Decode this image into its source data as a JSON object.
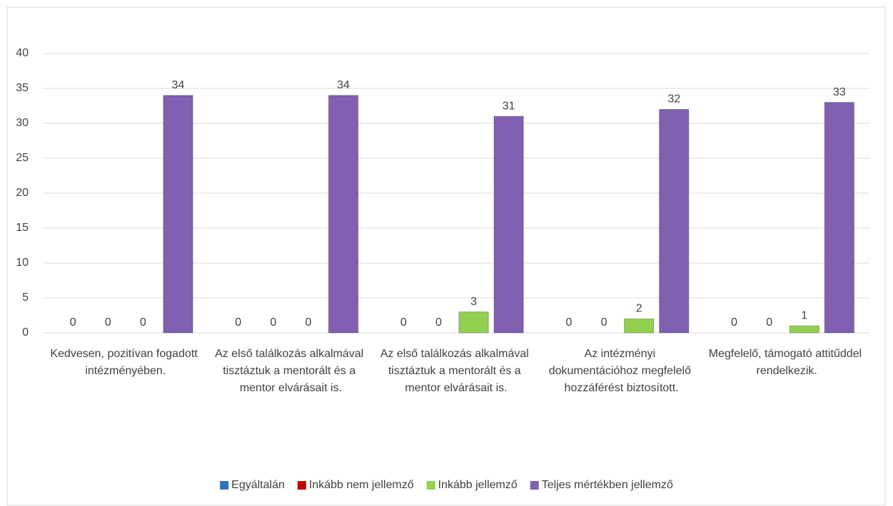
{
  "chart_data": {
    "type": "bar",
    "categories": [
      "Kedvesen, pozitívan fogadott intézményében.",
      "Az első találkozás alkalmával tisztáztuk a mentorált és a mentor elvárásait is.",
      "Az első találkozás alkalmával tisztáztuk a mentorált és a mentor elvárásait is.",
      "Az intézményi dokumentációhoz megfelelő hozzáférést biztosított.",
      "Megfelelő, támogató attitűddel rendelkezik."
    ],
    "series": [
      {
        "name": "Egyáltalán",
        "color": "#2e75b6",
        "values": [
          0,
          0,
          0,
          0,
          0
        ]
      },
      {
        "name": "Inkább nem jellemző",
        "color": "#c00000",
        "values": [
          0,
          0,
          0,
          0,
          0
        ]
      },
      {
        "name": "Inkább jellemző",
        "color": "#92d050",
        "values": [
          0,
          0,
          3,
          2,
          1
        ]
      },
      {
        "name": "Teljes mértékben jellemző",
        "color": "#8060b0",
        "values": [
          34,
          34,
          31,
          32,
          33
        ]
      }
    ],
    "ylim": [
      0,
      40
    ],
    "yticks": [
      0,
      5,
      10,
      15,
      20,
      25,
      30,
      35,
      40
    ],
    "grid": true,
    "legend": "bottom"
  }
}
